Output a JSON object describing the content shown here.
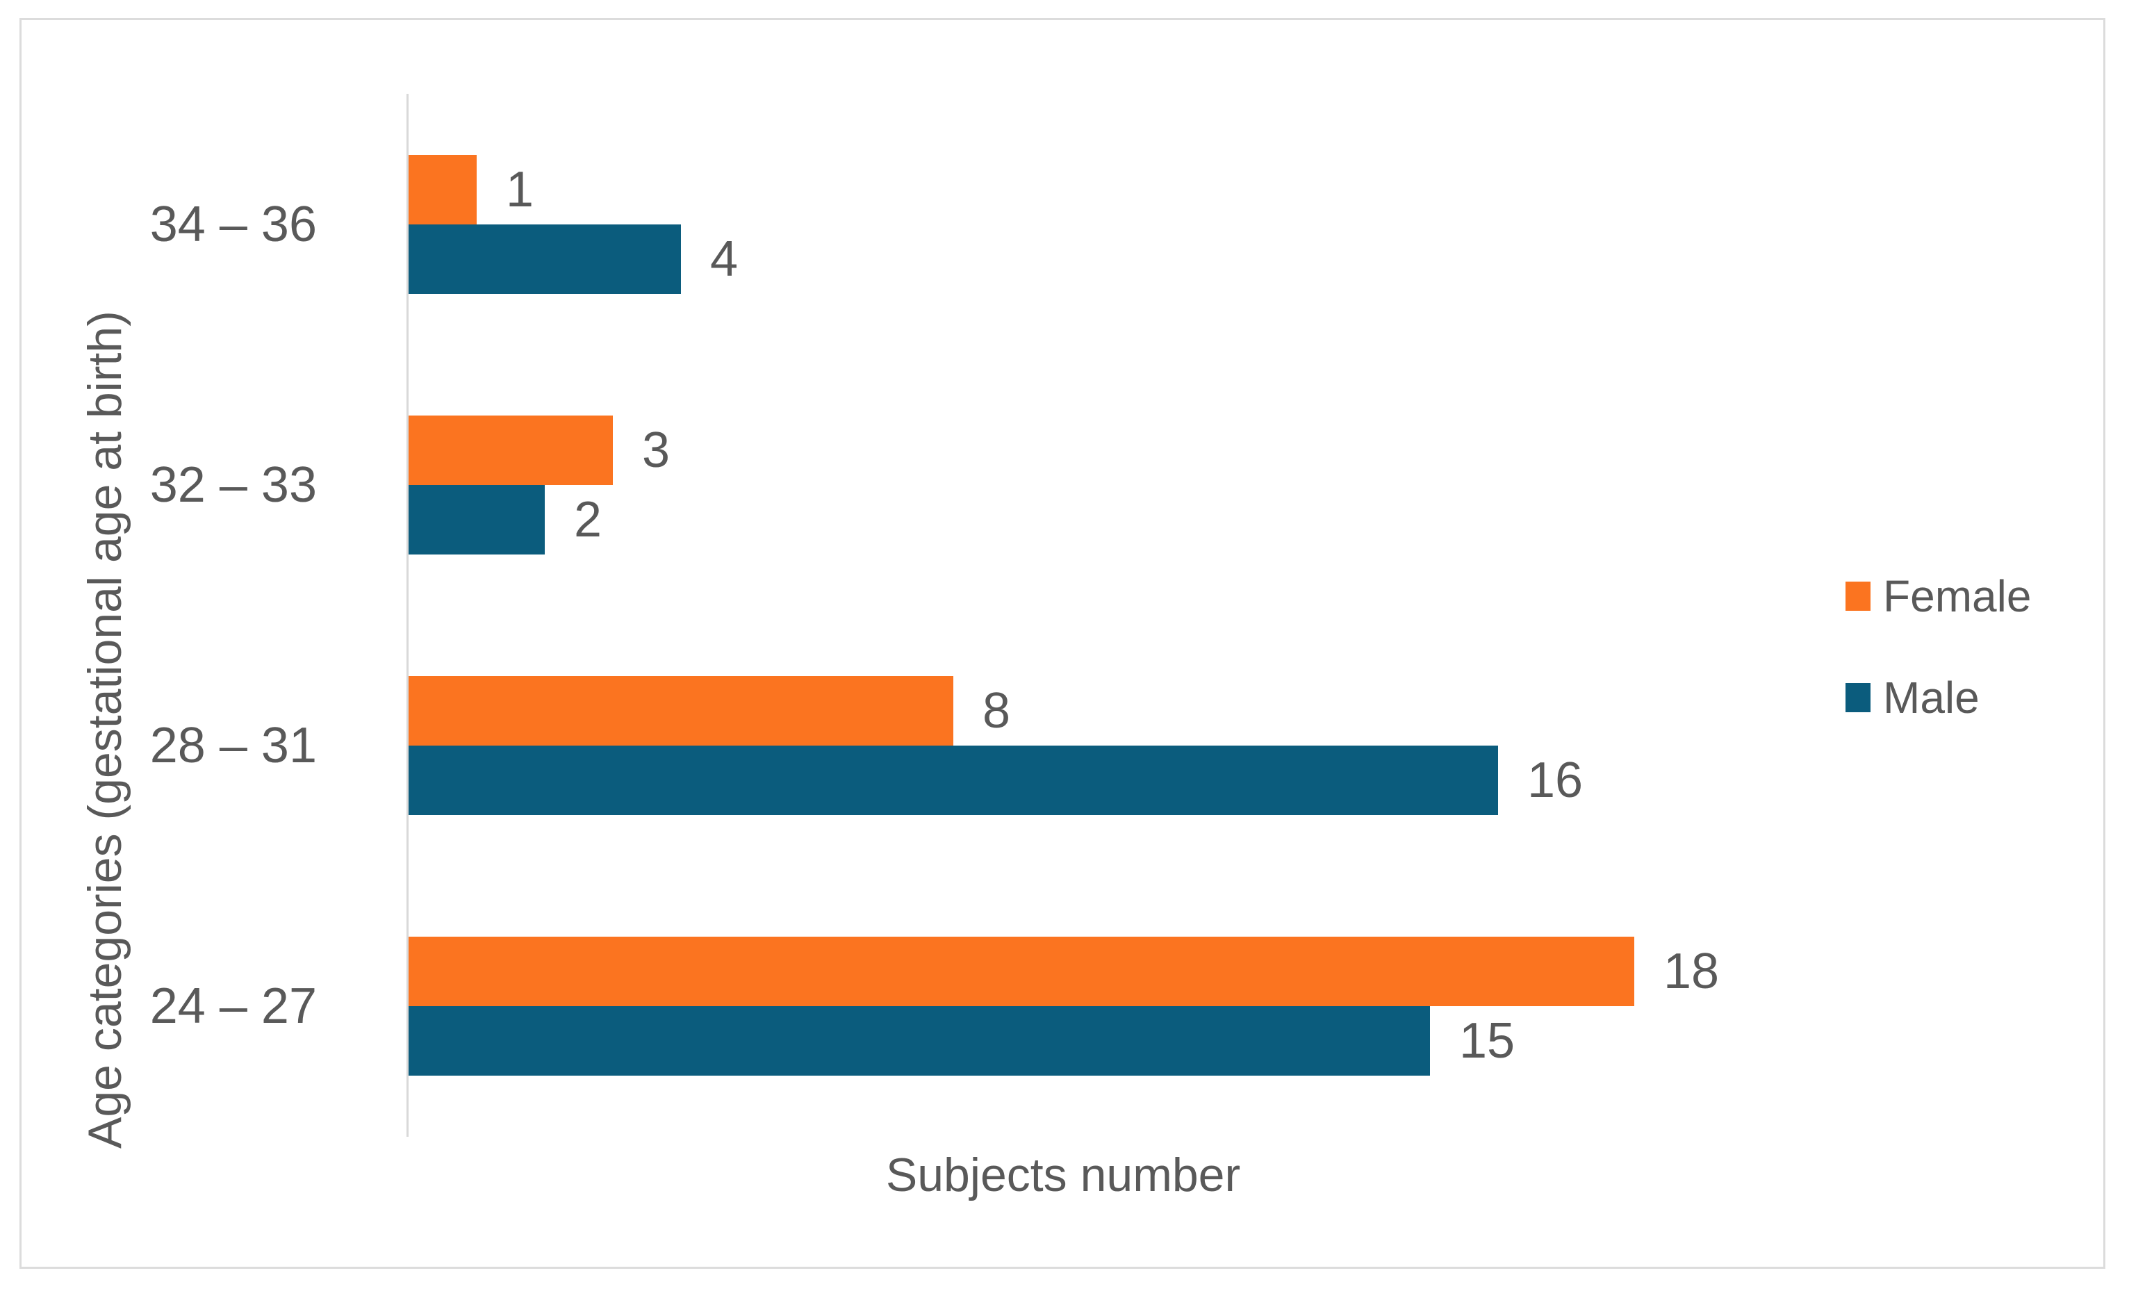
{
  "chart_data": {
    "type": "bar",
    "orientation": "horizontal",
    "title": "",
    "xlabel": "Subjects number",
    "ylabel": "Age categories (gestational age at birth)",
    "categories": [
      "34 – 36",
      "32 – 33",
      "28 – 31",
      "24 – 27"
    ],
    "series": [
      {
        "name": "Female",
        "color": "#fb7420",
        "values": [
          1,
          3,
          8,
          18
        ]
      },
      {
        "name": "Male",
        "color": "#0b5c7d",
        "values": [
          4,
          2,
          16,
          15
        ]
      }
    ],
    "xlim": [
      0,
      20
    ],
    "grid": false,
    "value_labels": true,
    "legend_position": "right",
    "text_color": "#595959",
    "axis_line_color": "#d9d9d9"
  }
}
